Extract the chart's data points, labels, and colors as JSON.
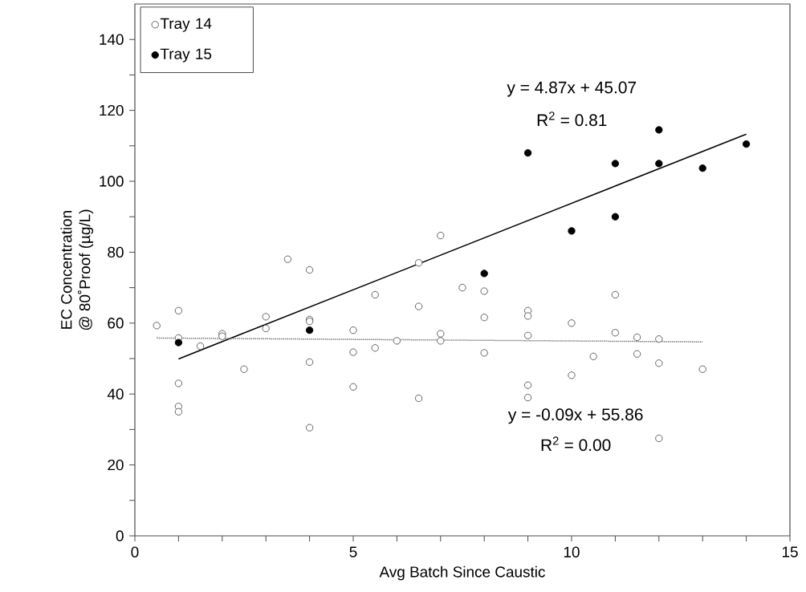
{
  "chart_data": {
    "type": "scatter",
    "xlabel": "Avg Batch Since Caustic",
    "ylabel": "EC Concentration\n@ 80˚Proof (µg/L)",
    "xlim": [
      0,
      15
    ],
    "ylim": [
      0,
      150
    ],
    "xticks": [
      0,
      5,
      10,
      15
    ],
    "yticks": [
      0,
      20,
      40,
      60,
      80,
      100,
      120,
      140
    ],
    "legend": "top left",
    "grid": false,
    "series": [
      {
        "name": "Tray 14",
        "color": "#555555",
        "marker": "circle",
        "x": [
          0.5,
          1,
          1,
          1,
          1,
          1,
          1.5,
          2,
          2,
          2.5,
          3,
          3,
          3.5,
          4,
          4,
          4,
          4,
          4,
          5,
          5,
          5,
          5.5,
          5.5,
          6,
          6.5,
          6.5,
          6.5,
          7,
          7,
          7,
          7.5,
          8,
          8,
          8,
          9,
          9,
          9,
          9,
          9,
          10,
          10,
          10.5,
          11,
          11,
          11.5,
          11.5,
          12,
          12,
          12,
          13
        ],
        "values": [
          59.3,
          63.5,
          55.8,
          43,
          36.5,
          35,
          53.5,
          57,
          56.3,
          47,
          61.8,
          58.5,
          78,
          75,
          61,
          60.5,
          49,
          30.5,
          58,
          51.8,
          42,
          68,
          53,
          55,
          77,
          64.7,
          38.8,
          84.7,
          57,
          55,
          70,
          69,
          61.6,
          51.6,
          63.5,
          62,
          56.5,
          42.5,
          39,
          60,
          45.3,
          50.6,
          68,
          57.3,
          56,
          51.3,
          55.5,
          48.7,
          27.5,
          47
        ]
      },
      {
        "name": "Tray 15",
        "color": "#000000",
        "marker": "circle",
        "x": [
          1,
          4,
          8,
          9,
          10,
          11,
          11,
          12,
          12,
          13,
          14
        ],
        "values": [
          54.5,
          58,
          74,
          108,
          86,
          105,
          90,
          114.5,
          105,
          103.7,
          110.5
        ]
      },
      {
        "type": "line",
        "color": "#000000",
        "marker": "none",
        "line_style": "solid",
        "x": [
          1,
          14
        ],
        "values": [
          49.9,
          113.3
        ]
      },
      {
        "type": "line",
        "color": "#777777",
        "marker": "none",
        "line_style": "dotted",
        "x": [
          0.5,
          13
        ],
        "values": [
          55.8,
          54.7
        ]
      }
    ],
    "annotations": [
      "y = 4.87x + 45.07",
      "R$^{2}$ = 0.81",
      "y = -0.09x + 55.86",
      "R$^{2}$ = 0.00"
    ]
  }
}
